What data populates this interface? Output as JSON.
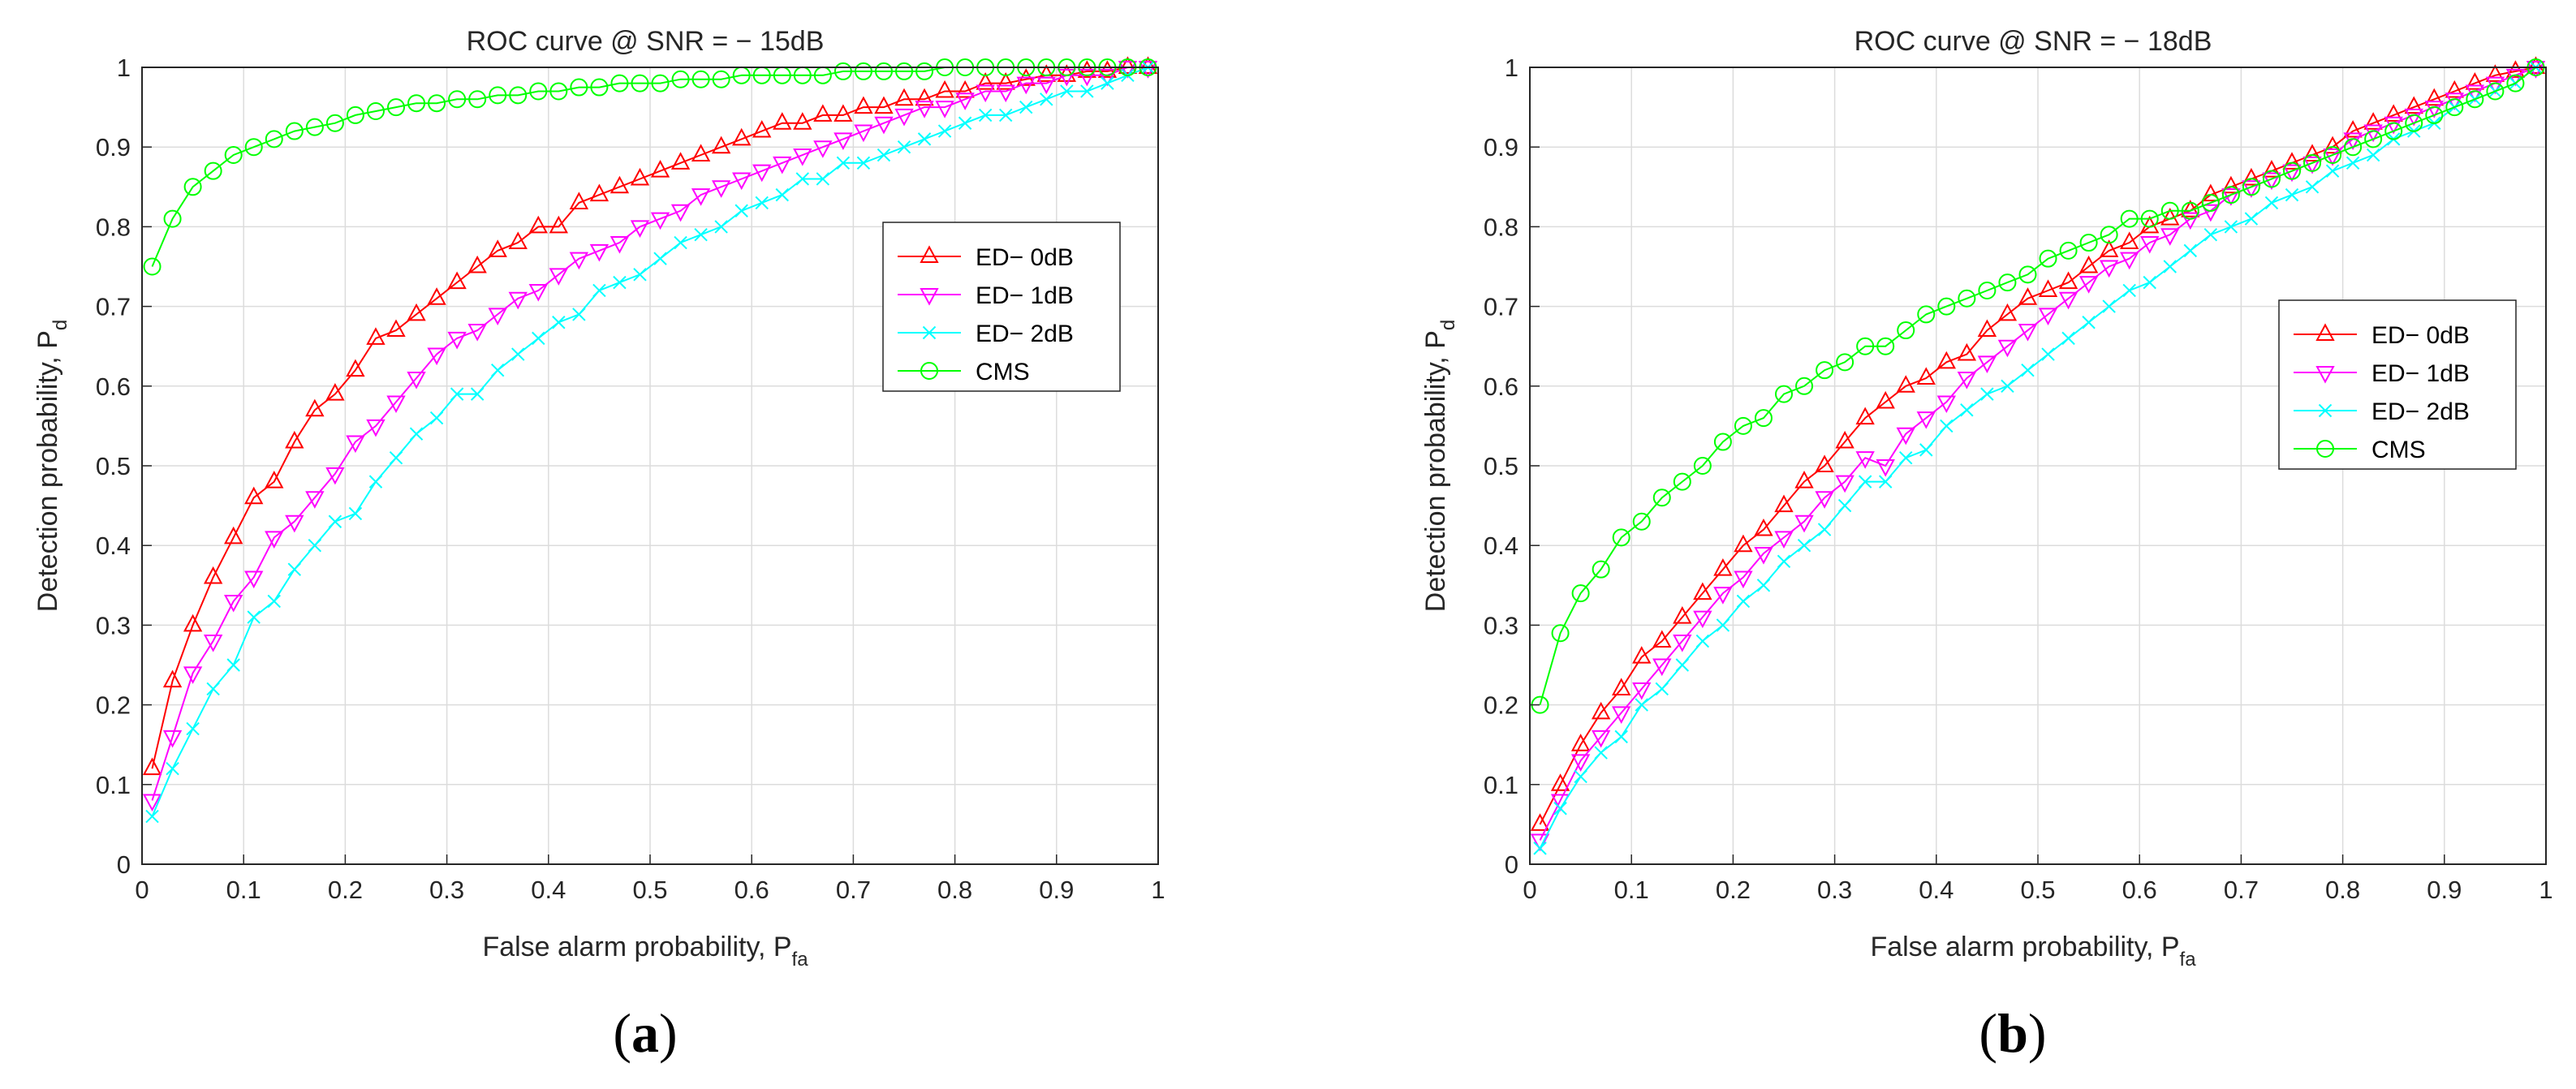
{
  "chart_data": [
    {
      "type": "line",
      "panel_label": "a",
      "title": "ROC curve @ SNR = − 15dB",
      "xlabel": "False alarm probability, P",
      "xlabel_sub": "fa",
      "ylabel": "Detection probability, P",
      "ylabel_sub": "d",
      "xlim": [
        0,
        1
      ],
      "ylim": [
        0,
        1
      ],
      "xticks": [
        "0",
        "0.1",
        "0.2",
        "0.3",
        "0.4",
        "0.5",
        "0.6",
        "0.7",
        "0.8",
        "0.9",
        "1"
      ],
      "yticks": [
        "0",
        "0.1",
        "0.2",
        "0.3",
        "0.4",
        "0.5",
        "0.6",
        "0.7",
        "0.8",
        "0.9",
        "1"
      ],
      "grid": true,
      "legend_position": "right-middle",
      "x": [
        0.01,
        0.03,
        0.05,
        0.07,
        0.09,
        0.11,
        0.13,
        0.15,
        0.17,
        0.19,
        0.21,
        0.23,
        0.25,
        0.27,
        0.29,
        0.31,
        0.33,
        0.35,
        0.37,
        0.39,
        0.41,
        0.43,
        0.45,
        0.47,
        0.49,
        0.51,
        0.53,
        0.55,
        0.57,
        0.59,
        0.61,
        0.63,
        0.65,
        0.67,
        0.69,
        0.71,
        0.73,
        0.75,
        0.77,
        0.79,
        0.81,
        0.83,
        0.85,
        0.87,
        0.89,
        0.91,
        0.93,
        0.95,
        0.97,
        0.99
      ],
      "series": [
        {
          "name": "ED− 0dB",
          "color": "#ff0000",
          "marker": "triangle-up",
          "values": [
            0.12,
            0.23,
            0.3,
            0.36,
            0.41,
            0.46,
            0.48,
            0.53,
            0.57,
            0.59,
            0.62,
            0.66,
            0.67,
            0.69,
            0.71,
            0.73,
            0.75,
            0.77,
            0.78,
            0.8,
            0.8,
            0.83,
            0.84,
            0.85,
            0.86,
            0.87,
            0.88,
            0.89,
            0.9,
            0.91,
            0.92,
            0.93,
            0.93,
            0.94,
            0.94,
            0.95,
            0.95,
            0.96,
            0.96,
            0.97,
            0.97,
            0.98,
            0.98,
            0.985,
            0.99,
            0.99,
            0.995,
            0.995,
            1.0,
            1.0
          ]
        },
        {
          "name": "ED− 1dB",
          "color": "#ff00ff",
          "marker": "triangle-down",
          "values": [
            0.08,
            0.16,
            0.24,
            0.28,
            0.33,
            0.36,
            0.41,
            0.43,
            0.46,
            0.49,
            0.53,
            0.55,
            0.58,
            0.61,
            0.64,
            0.66,
            0.67,
            0.69,
            0.71,
            0.72,
            0.74,
            0.76,
            0.77,
            0.78,
            0.8,
            0.81,
            0.82,
            0.84,
            0.85,
            0.86,
            0.87,
            0.88,
            0.89,
            0.9,
            0.91,
            0.92,
            0.93,
            0.94,
            0.95,
            0.95,
            0.96,
            0.97,
            0.97,
            0.98,
            0.98,
            0.99,
            0.99,
            0.99,
            1.0,
            1.0
          ]
        },
        {
          "name": "ED− 2dB",
          "color": "#00ffff",
          "marker": "x",
          "values": [
            0.06,
            0.12,
            0.17,
            0.22,
            0.25,
            0.31,
            0.33,
            0.37,
            0.4,
            0.43,
            0.44,
            0.48,
            0.51,
            0.54,
            0.56,
            0.59,
            0.59,
            0.62,
            0.64,
            0.66,
            0.68,
            0.69,
            0.72,
            0.73,
            0.74,
            0.76,
            0.78,
            0.79,
            0.8,
            0.82,
            0.83,
            0.84,
            0.86,
            0.86,
            0.88,
            0.88,
            0.89,
            0.9,
            0.91,
            0.92,
            0.93,
            0.94,
            0.94,
            0.95,
            0.96,
            0.97,
            0.97,
            0.98,
            0.99,
            1.0
          ]
        },
        {
          "name": "CMS",
          "color": "#00ff00",
          "marker": "circle",
          "values": [
            0.75,
            0.81,
            0.85,
            0.87,
            0.89,
            0.9,
            0.91,
            0.92,
            0.925,
            0.93,
            0.94,
            0.945,
            0.95,
            0.955,
            0.955,
            0.96,
            0.96,
            0.965,
            0.965,
            0.97,
            0.97,
            0.975,
            0.975,
            0.98,
            0.98,
            0.98,
            0.985,
            0.985,
            0.985,
            0.99,
            0.99,
            0.99,
            0.99,
            0.99,
            0.995,
            0.995,
            0.995,
            0.995,
            0.995,
            1.0,
            1.0,
            1.0,
            1.0,
            1.0,
            1.0,
            1.0,
            1.0,
            1.0,
            1.0,
            1.0
          ]
        }
      ]
    },
    {
      "type": "line",
      "panel_label": "b",
      "title": "ROC curve @ SNR = − 18dB",
      "xlabel": "False alarm probability, P",
      "xlabel_sub": "fa",
      "ylabel": "Detection probability, P",
      "ylabel_sub": "d",
      "xlim": [
        0,
        1
      ],
      "ylim": [
        0,
        1
      ],
      "xticks": [
        "0",
        "0.1",
        "0.2",
        "0.3",
        "0.4",
        "0.5",
        "0.6",
        "0.7",
        "0.8",
        "0.9",
        "1"
      ],
      "yticks": [
        "0",
        "0.1",
        "0.2",
        "0.3",
        "0.4",
        "0.5",
        "0.6",
        "0.7",
        "0.8",
        "0.9",
        "1"
      ],
      "grid": true,
      "legend_position": "right-middle",
      "x": [
        0.01,
        0.03,
        0.05,
        0.07,
        0.09,
        0.11,
        0.13,
        0.15,
        0.17,
        0.19,
        0.21,
        0.23,
        0.25,
        0.27,
        0.29,
        0.31,
        0.33,
        0.35,
        0.37,
        0.39,
        0.41,
        0.43,
        0.45,
        0.47,
        0.49,
        0.51,
        0.53,
        0.55,
        0.57,
        0.59,
        0.61,
        0.63,
        0.65,
        0.67,
        0.69,
        0.71,
        0.73,
        0.75,
        0.77,
        0.79,
        0.81,
        0.83,
        0.85,
        0.87,
        0.89,
        0.91,
        0.93,
        0.95,
        0.97,
        0.99
      ],
      "series": [
        {
          "name": "ED− 0dB",
          "color": "#ff0000",
          "marker": "triangle-up",
          "values": [
            0.05,
            0.1,
            0.15,
            0.19,
            0.22,
            0.26,
            0.28,
            0.31,
            0.34,
            0.37,
            0.4,
            0.42,
            0.45,
            0.48,
            0.5,
            0.53,
            0.56,
            0.58,
            0.6,
            0.61,
            0.63,
            0.64,
            0.67,
            0.69,
            0.71,
            0.72,
            0.73,
            0.75,
            0.77,
            0.78,
            0.8,
            0.81,
            0.82,
            0.84,
            0.85,
            0.86,
            0.87,
            0.88,
            0.89,
            0.9,
            0.92,
            0.93,
            0.94,
            0.95,
            0.96,
            0.97,
            0.98,
            0.99,
            0.995,
            1.0
          ]
        },
        {
          "name": "ED− 1dB",
          "color": "#ff00ff",
          "marker": "triangle-down",
          "values": [
            0.03,
            0.08,
            0.13,
            0.16,
            0.19,
            0.22,
            0.25,
            0.28,
            0.31,
            0.34,
            0.36,
            0.39,
            0.41,
            0.43,
            0.46,
            0.48,
            0.51,
            0.5,
            0.54,
            0.56,
            0.58,
            0.61,
            0.63,
            0.65,
            0.67,
            0.69,
            0.71,
            0.73,
            0.75,
            0.76,
            0.78,
            0.79,
            0.81,
            0.82,
            0.84,
            0.85,
            0.86,
            0.87,
            0.88,
            0.89,
            0.91,
            0.92,
            0.93,
            0.94,
            0.95,
            0.96,
            0.97,
            0.98,
            0.99,
            1.0
          ]
        },
        {
          "name": "ED− 2dB",
          "color": "#00ffff",
          "marker": "x",
          "values": [
            0.02,
            0.07,
            0.11,
            0.14,
            0.16,
            0.2,
            0.22,
            0.25,
            0.28,
            0.3,
            0.33,
            0.35,
            0.38,
            0.4,
            0.42,
            0.45,
            0.48,
            0.48,
            0.51,
            0.52,
            0.55,
            0.57,
            0.59,
            0.6,
            0.62,
            0.64,
            0.66,
            0.68,
            0.7,
            0.72,
            0.73,
            0.75,
            0.77,
            0.79,
            0.8,
            0.81,
            0.83,
            0.84,
            0.85,
            0.87,
            0.88,
            0.89,
            0.91,
            0.92,
            0.93,
            0.95,
            0.96,
            0.97,
            0.98,
            1.0
          ]
        },
        {
          "name": "CMS",
          "color": "#00ff00",
          "marker": "circle",
          "values": [
            0.2,
            0.29,
            0.34,
            0.37,
            0.41,
            0.43,
            0.46,
            0.48,
            0.5,
            0.53,
            0.55,
            0.56,
            0.59,
            0.6,
            0.62,
            0.63,
            0.65,
            0.65,
            0.67,
            0.69,
            0.7,
            0.71,
            0.72,
            0.73,
            0.74,
            0.76,
            0.77,
            0.78,
            0.79,
            0.81,
            0.81,
            0.82,
            0.82,
            0.83,
            0.84,
            0.85,
            0.86,
            0.87,
            0.88,
            0.89,
            0.9,
            0.91,
            0.92,
            0.93,
            0.94,
            0.95,
            0.96,
            0.97,
            0.98,
            1.0
          ]
        }
      ]
    }
  ]
}
